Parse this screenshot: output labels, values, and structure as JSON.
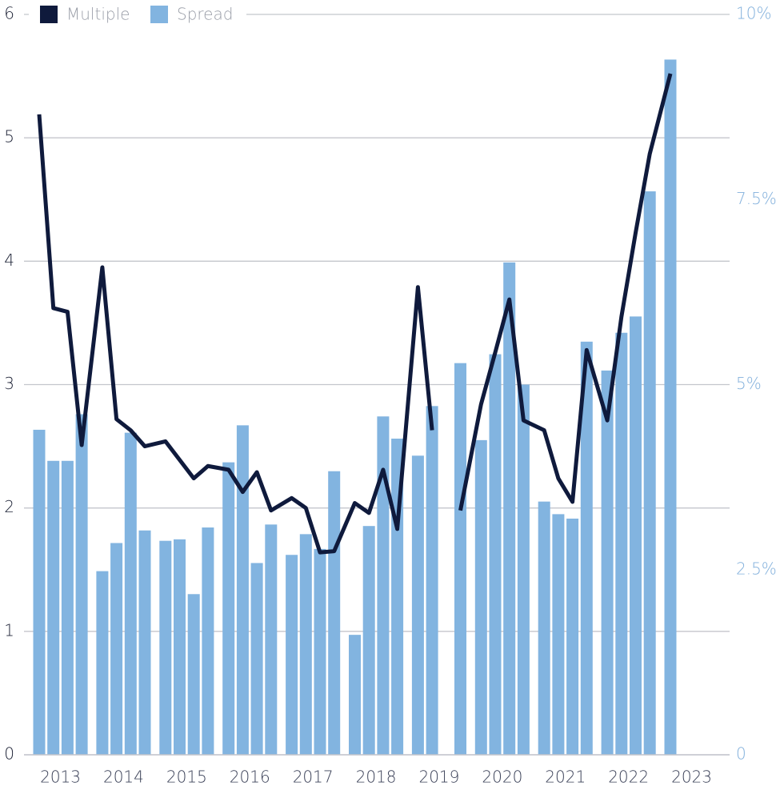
{
  "chart_data": {
    "type": "bar-line",
    "categories": [
      "2013",
      "2014",
      "2015",
      "2016",
      "2017",
      "2018",
      "2019",
      "2020",
      "2021",
      "2022",
      "2023"
    ],
    "series": [
      {
        "name": "Multiple",
        "type": "line",
        "color": "#0f1a3c",
        "axis": "y",
        "values": [
          [
            5.19,
            3.62,
            3.59,
            2.51
          ],
          [
            3.95,
            2.72,
            2.63,
            2.5
          ],
          [
            2.54,
            2.39,
            2.24,
            2.34
          ],
          [
            2.31,
            2.13,
            2.29,
            1.98
          ],
          [
            2.08,
            2.0,
            1.64,
            1.65
          ],
          [
            2.04,
            1.96,
            2.31,
            1.83
          ],
          [
            3.79,
            2.63,
            null,
            1.98
          ],
          [
            2.84,
            3.26,
            3.69,
            2.71
          ],
          [
            2.63,
            2.24,
            2.05,
            3.28
          ],
          [
            2.71,
            3.55,
            4.23,
            4.87
          ],
          [
            5.52,
            null,
            null,
            null
          ]
        ]
      },
      {
        "name": "Spread",
        "type": "bar",
        "color": "#82b4e0",
        "axis": "y2",
        "values": [
          [
            4.39,
            3.97,
            3.97,
            4.6
          ],
          [
            2.48,
            2.86,
            4.35,
            3.03
          ],
          [
            2.89,
            2.91,
            2.17,
            3.07
          ],
          [
            3.95,
            4.45,
            2.59,
            3.11
          ],
          [
            2.7,
            2.98,
            2.78,
            3.83
          ],
          [
            1.62,
            3.09,
            4.57,
            4.27
          ],
          [
            4.04,
            4.71,
            null,
            5.29
          ],
          [
            4.25,
            5.41,
            6.65,
            5.0
          ],
          [
            3.42,
            3.25,
            3.19,
            5.58
          ],
          [
            5.19,
            5.7,
            5.92,
            7.61
          ],
          [
            9.39,
            null,
            null,
            null
          ]
        ]
      }
    ],
    "ylim": [
      0,
      6
    ],
    "yticks": [
      0,
      1,
      2,
      3,
      4,
      5,
      6
    ],
    "y2lim": [
      0,
      10
    ],
    "y2ticks": [
      0,
      {
        "value": 2.5,
        "label": "2.5%"
      },
      {
        "value": 5,
        "label": "5%"
      },
      {
        "value": 7.5,
        "label": "7.5%"
      },
      {
        "value": 10,
        "label": "10%"
      }
    ],
    "grid": true,
    "legend": "top-left"
  }
}
